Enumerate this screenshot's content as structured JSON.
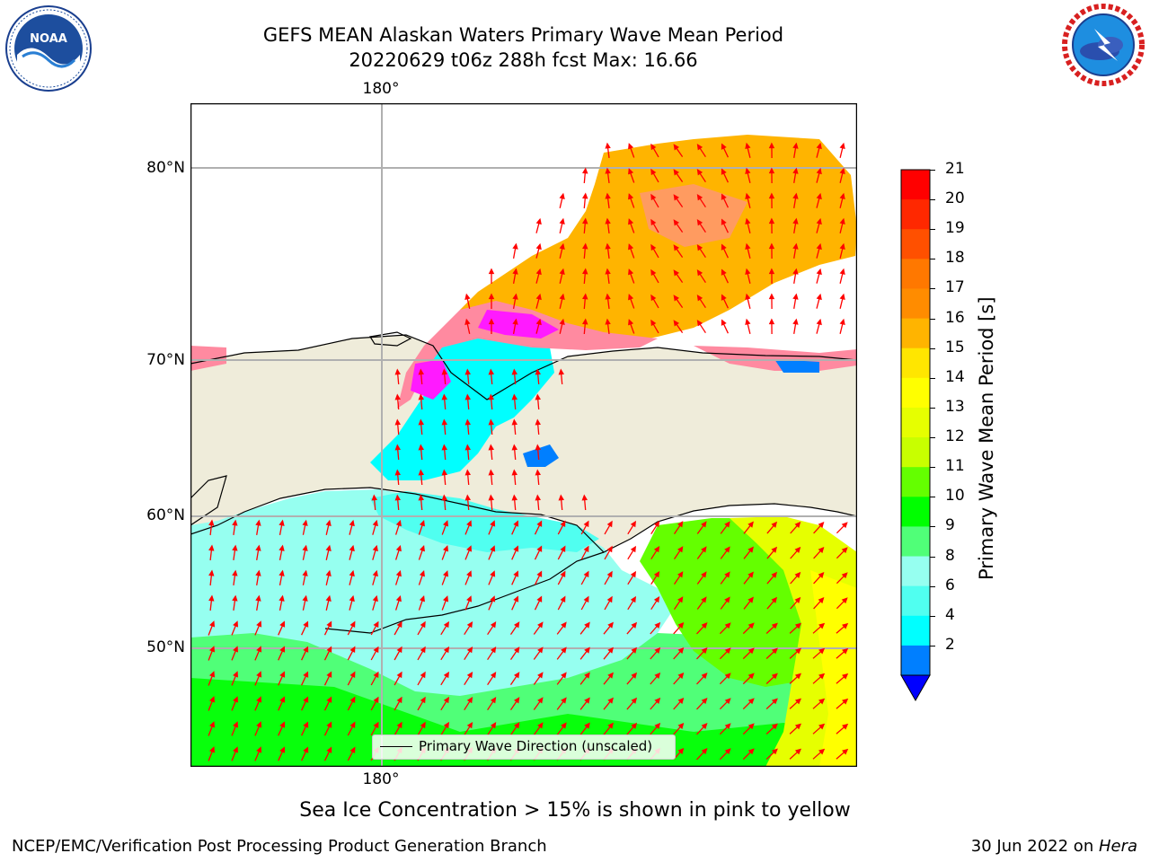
{
  "header": {
    "title_line1": "GEFS MEAN Alaskan Waters Primary Wave Mean Period",
    "title_line2": "20220629 t06z 288h fcst   Max: 16.66"
  },
  "logos": {
    "left": "noaa-logo-icon",
    "right": "national-weather-service-logo-icon"
  },
  "map": {
    "lon_label_top": "180°",
    "lon_label_bottom": "180°",
    "lat_labels": [
      "80°N",
      "70°N",
      "60°N",
      "50°N"
    ],
    "legend_text": "Primary Wave Direction (unscaled)",
    "colors": {
      "land": "#efecda",
      "arrow": "#ff0000",
      "coast": "#000000",
      "grid": "#b0b0b0"
    }
  },
  "colorbar": {
    "label": "Primary Wave Mean Period [s]",
    "ticks": [
      "21",
      "20",
      "19",
      "18",
      "17",
      "16",
      "15",
      "14",
      "13",
      "12",
      "11",
      "10",
      "9",
      "8",
      "6",
      "4",
      "2"
    ],
    "under_color": "#0000ff",
    "bands": [
      "#ff0000",
      "#ff2800",
      "#ff5000",
      "#ff7800",
      "#ff8c00",
      "#ffb400",
      "#ffe600",
      "#ffff00",
      "#e6ff00",
      "#c8ff00",
      "#64ff00",
      "#00ff00",
      "#50ff78",
      "#96fff0",
      "#50fff0",
      "#00ffff",
      "#007fff"
    ]
  },
  "footer": {
    "subtitle": "Sea Ice Concentration > 15% is shown in pink to yellow",
    "left": "NCEP/EMC/Verification Post Processing Product Generation Branch",
    "right_date": "30 Jun 2022 on ",
    "right_host": "Hera"
  }
}
